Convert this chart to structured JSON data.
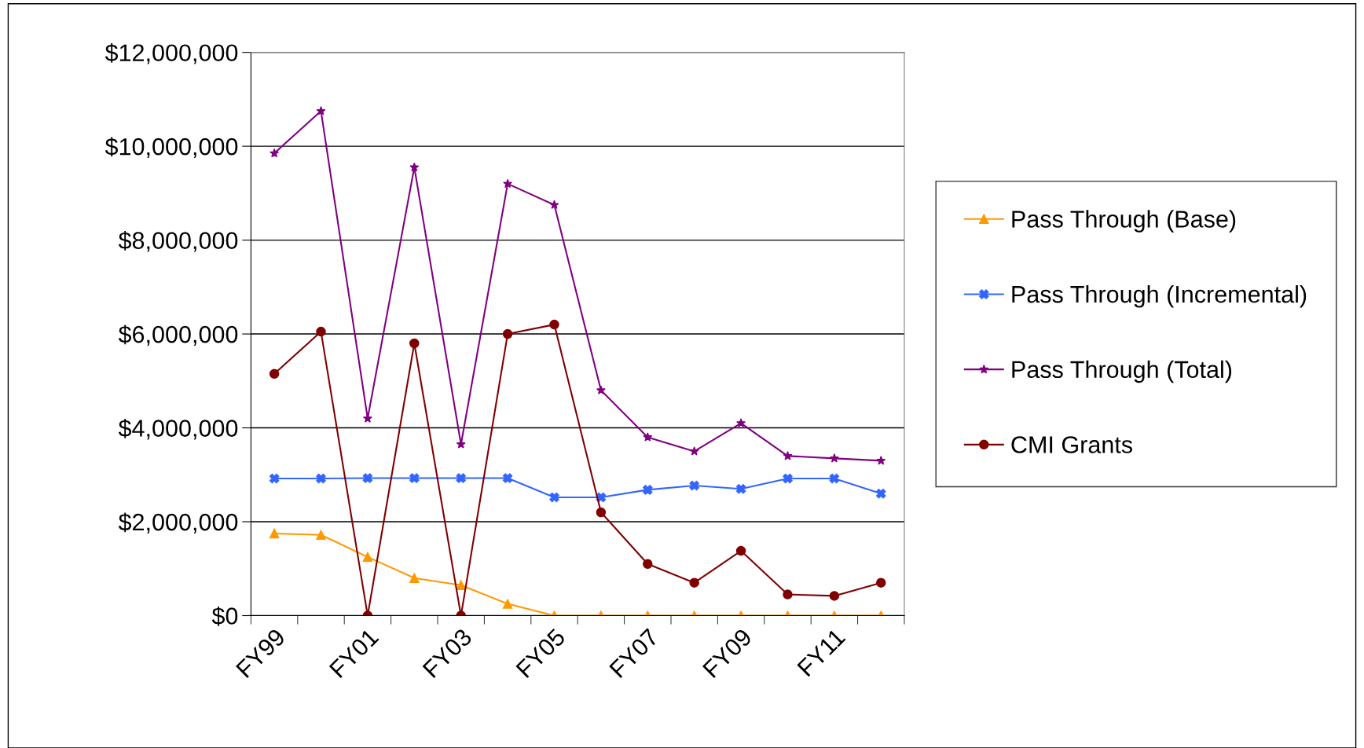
{
  "chart_data": {
    "type": "line",
    "categories": [
      "FY99",
      null,
      "FY01",
      null,
      "FY03",
      null,
      "FY05",
      null,
      "FY07",
      null,
      "FY09",
      null,
      "FY11",
      null
    ],
    "ylim": [
      0,
      12000000
    ],
    "yticks": [
      {
        "value": 0,
        "label": "$0"
      },
      {
        "value": 2000000,
        "label": "$2,000,000"
      },
      {
        "value": 4000000,
        "label": "$4,000,000"
      },
      {
        "value": 6000000,
        "label": "$6,000,000"
      },
      {
        "value": 8000000,
        "label": "$8,000,000"
      },
      {
        "value": 10000000,
        "label": "$10,000,000"
      },
      {
        "value": 12000000,
        "label": "$12,000,000"
      }
    ],
    "grid": "y",
    "legend": "right",
    "series": [
      {
        "name": "Pass Through (Base)",
        "color": "#ff9900",
        "marker": "triangle",
        "values": [
          1750000,
          1720000,
          1250000,
          800000,
          650000,
          250000,
          0,
          0,
          0,
          0,
          0,
          0,
          0,
          0
        ]
      },
      {
        "name": "Pass Through (Incremental)",
        "color": "#3366ff",
        "marker": "cross",
        "values": [
          2920000,
          2920000,
          2930000,
          2930000,
          2930000,
          2930000,
          2520000,
          2520000,
          2680000,
          2770000,
          2700000,
          2920000,
          2920000,
          2600000
        ]
      },
      {
        "name": "Pass Through (Total)",
        "color": "#800080",
        "marker": "star",
        "values": [
          9850000,
          10750000,
          4200000,
          9550000,
          3650000,
          9200000,
          8750000,
          4800000,
          3800000,
          3500000,
          4100000,
          3400000,
          3350000,
          3300000
        ]
      },
      {
        "name": "CMI Grants",
        "color": "#800000",
        "marker": "circle",
        "values": [
          5150000,
          6050000,
          0,
          5800000,
          0,
          6000000,
          6200000,
          2200000,
          1100000,
          700000,
          1380000,
          450000,
          420000,
          700000
        ]
      }
    ]
  }
}
